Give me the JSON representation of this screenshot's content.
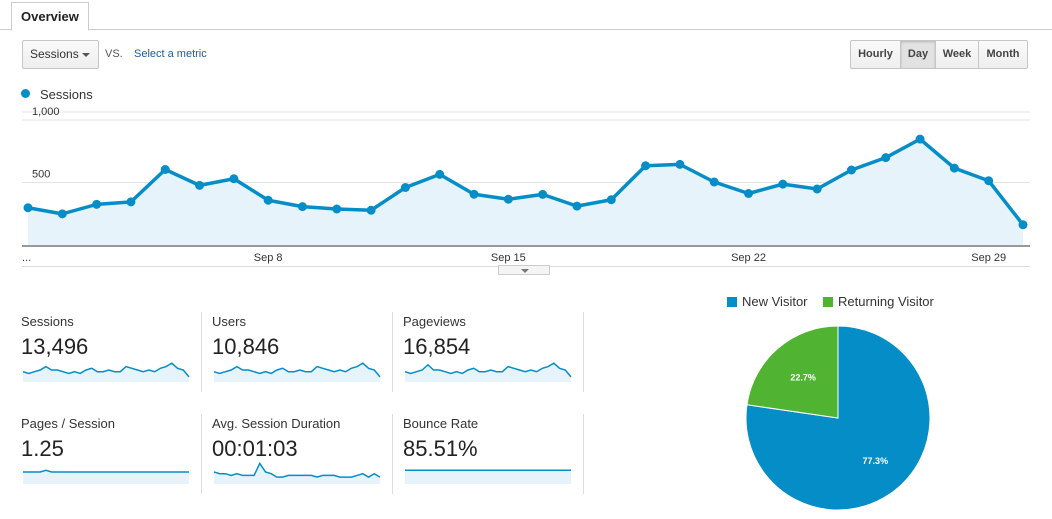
{
  "tabs": [
    {
      "label": "Overview"
    }
  ],
  "controls": {
    "metric_select": "Sessions",
    "vs_label": "VS.",
    "select_metric_link": "Select a metric",
    "intervals": [
      {
        "label": "Hourly",
        "active": false
      },
      {
        "label": "Day",
        "active": true
      },
      {
        "label": "Week",
        "active": false
      },
      {
        "label": "Month",
        "active": false
      }
    ]
  },
  "colors": {
    "primary": "#058dc7",
    "secondary": "#50b432",
    "fill": "#e6f3fa"
  },
  "chart_data": {
    "type": "area",
    "title": "",
    "legend": [
      {
        "name": "Sessions",
        "color": "#058dc7"
      }
    ],
    "legend_position": "top-left",
    "y_ticks": [
      {
        "value": 500,
        "label": "500"
      },
      {
        "value": 1000,
        "label": "1,000"
      }
    ],
    "ylim": [
      0,
      1000
    ],
    "x_start_label": "...",
    "x_ticks": [
      {
        "index": 7,
        "label": "Sep 8"
      },
      {
        "index": 14,
        "label": "Sep 15"
      },
      {
        "index": 21,
        "label": "Sep 22"
      },
      {
        "index": 28,
        "label": "Sep 29"
      }
    ],
    "grid": true,
    "series": [
      {
        "name": "Sessions",
        "values": [
          298,
          249,
          325,
          345,
          604,
          477,
          530,
          358,
          307,
          288,
          278,
          460,
          565,
          406,
          366,
          405,
          311,
          362,
          634,
          645,
          504,
          412,
          487,
          448,
          600,
          699,
          847,
          615,
          514,
          162
        ]
      }
    ]
  },
  "metrics": [
    {
      "label": "Sessions",
      "value": "13,496",
      "spark": [
        6,
        5,
        6,
        7,
        9,
        7,
        7,
        6,
        5,
        6,
        5,
        7,
        8,
        6,
        6,
        7,
        6,
        6,
        9,
        8,
        7,
        6,
        7,
        6,
        8,
        9,
        11,
        8,
        7,
        3
      ]
    },
    {
      "label": "Users",
      "value": "10,846",
      "spark": [
        6,
        5,
        6,
        7,
        9,
        7,
        7,
        6,
        5,
        6,
        5,
        7,
        8,
        6,
        6,
        7,
        6,
        6,
        9,
        8,
        7,
        6,
        7,
        6,
        8,
        9,
        11,
        8,
        7,
        3
      ]
    },
    {
      "label": "Pageviews",
      "value": "16,854",
      "spark": [
        6,
        5,
        6,
        7,
        10,
        7,
        7,
        6,
        5,
        6,
        5,
        7,
        8,
        6,
        6,
        7,
        6,
        6,
        9,
        8,
        7,
        6,
        7,
        6,
        8,
        9,
        11,
        8,
        7,
        3
      ]
    },
    {
      "label": "Pages / Session",
      "value": "1.25",
      "spark": [
        7,
        7,
        7,
        7,
        8,
        7,
        7,
        7,
        7,
        7,
        7,
        7,
        7,
        7,
        7,
        7,
        7,
        7,
        7,
        7,
        7,
        7,
        7,
        7,
        7,
        7,
        7,
        7,
        7,
        7
      ]
    },
    {
      "label": "Avg. Session Duration",
      "value": "00:01:03",
      "spark": [
        7,
        6,
        6,
        5,
        6,
        5,
        5,
        5,
        12,
        7,
        6,
        4,
        4,
        5,
        5,
        5,
        5,
        5,
        4,
        5,
        5,
        5,
        4,
        4,
        4,
        5,
        6,
        4,
        6,
        4
      ]
    },
    {
      "label": "Bounce Rate",
      "value": "85.51%",
      "spark": [
        8,
        8,
        8,
        8,
        8,
        8,
        8,
        8,
        8,
        8,
        8,
        8,
        8,
        8,
        8,
        8,
        8,
        8,
        8,
        8,
        8,
        8,
        8,
        8,
        8,
        8,
        8,
        8,
        8,
        8
      ]
    }
  ],
  "pie": {
    "type": "pie",
    "legend": [
      {
        "name": "New Visitor",
        "color": "#058dc7"
      },
      {
        "name": "Returning Visitor",
        "color": "#50b432"
      }
    ],
    "slices": [
      {
        "name": "New Visitor",
        "value": 77.3,
        "label": "77.3%",
        "color": "#058dc7"
      },
      {
        "name": "Returning Visitor",
        "value": 22.7,
        "label": "22.7%",
        "color": "#50b432"
      }
    ]
  }
}
